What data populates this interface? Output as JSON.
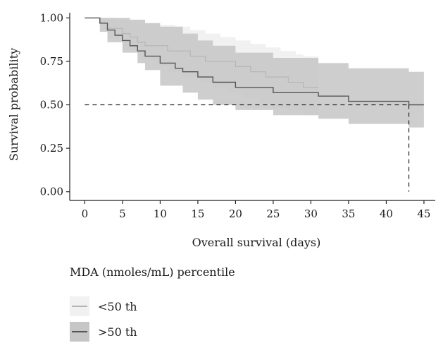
{
  "chart_data": {
    "type": "line",
    "subtype": "kaplan-meier survival curve with confidence bands",
    "xlabel": "Overall survival (days)",
    "ylabel": "Survival probability",
    "xlim": [
      -2,
      46.5
    ],
    "ylim": [
      -0.05,
      1.03
    ],
    "x_ticks": [
      0,
      5,
      10,
      15,
      20,
      25,
      30,
      35,
      40,
      45
    ],
    "x_tick_labels": [
      "0",
      "5",
      "10",
      "15",
      "20",
      "25",
      "30",
      "35",
      "40",
      "45"
    ],
    "y_ticks": [
      0,
      0.25,
      0.5,
      0.75,
      1.0
    ],
    "y_tick_labels": [
      "0.00",
      "0.25",
      "0.50",
      "0.75",
      "1.00"
    ],
    "grid": false,
    "legend_title": "MDA (nmoles/mL) percentile",
    "legend_position": "bottom",
    "series": [
      {
        "name": "<50 th",
        "line_color": "#b4b4b4",
        "band_color": "#f1f1f1",
        "steps": [
          [
            0,
            1.0
          ],
          [
            2,
            0.97
          ],
          [
            3,
            0.94
          ],
          [
            5,
            0.91
          ],
          [
            6,
            0.89
          ],
          [
            7,
            0.86
          ],
          [
            8,
            0.84
          ],
          [
            11,
            0.81
          ],
          [
            14,
            0.78
          ],
          [
            16,
            0.75
          ],
          [
            20,
            0.72
          ],
          [
            22,
            0.69
          ],
          [
            24,
            0.66
          ],
          [
            27,
            0.63
          ],
          [
            29,
            0.6
          ],
          [
            31,
            0.6
          ]
        ],
        "upper": [
          [
            0,
            1.0
          ],
          [
            2,
            1.0
          ],
          [
            4,
            0.99
          ],
          [
            6,
            0.98
          ],
          [
            8,
            0.97
          ],
          [
            10,
            0.96
          ],
          [
            12,
            0.95
          ],
          [
            14,
            0.93
          ],
          [
            16,
            0.91
          ],
          [
            18,
            0.89
          ],
          [
            20,
            0.87
          ],
          [
            22,
            0.85
          ],
          [
            24,
            0.83
          ],
          [
            26,
            0.81
          ],
          [
            28,
            0.79
          ],
          [
            29,
            0.78
          ],
          [
            31,
            0.78
          ]
        ],
        "lower": [
          [
            0,
            1.0
          ],
          [
            2,
            0.93
          ],
          [
            3,
            0.88
          ],
          [
            5,
            0.82
          ],
          [
            7,
            0.76
          ],
          [
            9,
            0.72
          ],
          [
            11,
            0.69
          ],
          [
            13,
            0.66
          ],
          [
            15,
            0.63
          ],
          [
            17,
            0.6
          ],
          [
            19,
            0.57
          ],
          [
            21,
            0.54
          ],
          [
            23,
            0.51
          ],
          [
            25,
            0.48
          ],
          [
            27,
            0.46
          ],
          [
            29,
            0.44
          ],
          [
            31,
            0.44
          ]
        ]
      },
      {
        "name": ">50 th",
        "line_color": "#555555",
        "band_color": "#c6c6c6",
        "steps": [
          [
            0,
            1.0
          ],
          [
            2,
            0.97
          ],
          [
            3,
            0.93
          ],
          [
            4,
            0.9
          ],
          [
            5,
            0.87
          ],
          [
            6,
            0.84
          ],
          [
            7,
            0.81
          ],
          [
            8,
            0.78
          ],
          [
            10,
            0.74
          ],
          [
            12,
            0.71
          ],
          [
            13,
            0.69
          ],
          [
            15,
            0.66
          ],
          [
            17,
            0.63
          ],
          [
            20,
            0.6
          ],
          [
            25,
            0.57
          ],
          [
            31,
            0.55
          ],
          [
            35,
            0.52
          ],
          [
            43,
            0.5
          ],
          [
            45,
            0.5
          ]
        ],
        "upper": [
          [
            0,
            1.0
          ],
          [
            2,
            1.0
          ],
          [
            6,
            0.99
          ],
          [
            8,
            0.97
          ],
          [
            10,
            0.95
          ],
          [
            13,
            0.91
          ],
          [
            15,
            0.87
          ],
          [
            17,
            0.84
          ],
          [
            20,
            0.8
          ],
          [
            25,
            0.77
          ],
          [
            31,
            0.74
          ],
          [
            35,
            0.71
          ],
          [
            43,
            0.69
          ],
          [
            45,
            0.69
          ]
        ],
        "lower": [
          [
            0,
            1.0
          ],
          [
            2,
            0.92
          ],
          [
            3,
            0.86
          ],
          [
            5,
            0.8
          ],
          [
            7,
            0.74
          ],
          [
            8,
            0.7
          ],
          [
            10,
            0.61
          ],
          [
            13,
            0.57
          ],
          [
            15,
            0.53
          ],
          [
            17,
            0.5
          ],
          [
            20,
            0.47
          ],
          [
            25,
            0.44
          ],
          [
            31,
            0.42
          ],
          [
            35,
            0.39
          ],
          [
            43,
            0.37
          ],
          [
            45,
            0.37
          ]
        ]
      }
    ],
    "reference_lines": {
      "median_survival_probability": 0.5,
      "median_survival_time": 43
    }
  }
}
